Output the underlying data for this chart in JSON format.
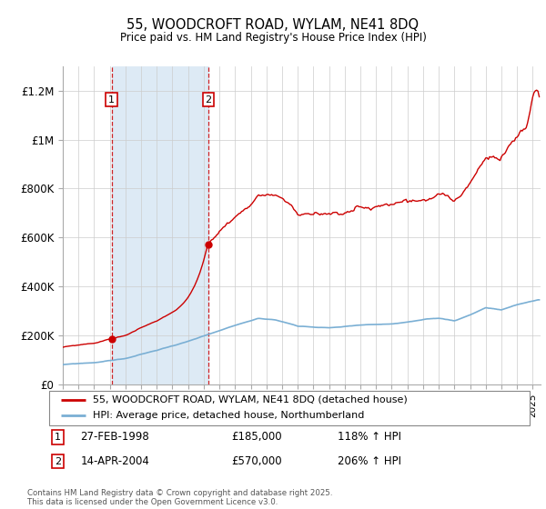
{
  "title": "55, WOODCROFT ROAD, WYLAM, NE41 8DQ",
  "subtitle": "Price paid vs. HM Land Registry's House Price Index (HPI)",
  "background_color": "#ffffff",
  "grid_color": "#cccccc",
  "hpi_line_color": "#7aafd4",
  "property_line_color": "#cc0000",
  "sale1_date_num": 1998.12,
  "sale1_price": 185000,
  "sale1_label": "27-FEB-1998",
  "sale1_hpi_pct": "118%",
  "sale2_date_num": 2004.29,
  "sale2_price": 570000,
  "sale2_label": "14-APR-2004",
  "sale2_hpi_pct": "206%",
  "ylim_max": 1300000,
  "ylim_min": 0,
  "xlim_min": 1995.0,
  "xlim_max": 2025.5,
  "shade_color": "#ddeaf5",
  "legend_property": "55, WOODCROFT ROAD, WYLAM, NE41 8DQ (detached house)",
  "legend_hpi": "HPI: Average price, detached house, Northumberland",
  "footnote": "Contains HM Land Registry data © Crown copyright and database right 2025.\nThis data is licensed under the Open Government Licence v3.0.",
  "yticks": [
    0,
    200000,
    400000,
    600000,
    800000,
    1000000,
    1200000
  ],
  "ytick_labels": [
    "£0",
    "£200K",
    "£400K",
    "£600K",
    "£800K",
    "£1M",
    "£1.2M"
  ]
}
